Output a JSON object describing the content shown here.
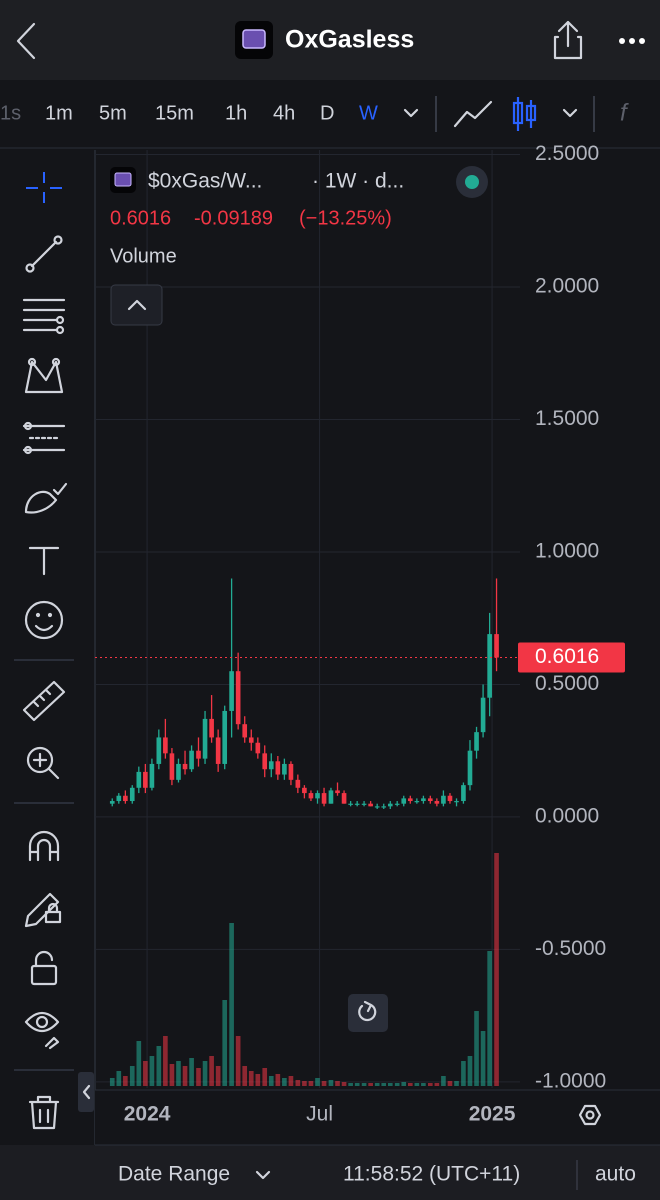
{
  "header": {
    "title": "OxGasless"
  },
  "timeframes": [
    "1s",
    "1m",
    "5m",
    "15m",
    "1h",
    "4h",
    "D",
    "W"
  ],
  "selected_timeframe": "W",
  "chart_data": {
    "type": "candlestick",
    "title": "$0xGas/W...",
    "subtitle": "· 1W · d...",
    "change": -0.09189,
    "change_label": "(−13.25%)",
    "volume_label": "Volume",
    "up_color": "#22ab94",
    "down_color": "#f23645",
    "x": [
      2023.899,
      2023.918,
      2023.937,
      2023.957,
      2023.976,
      2023.995,
      2024.014,
      2024.034,
      2024.053,
      2024.072,
      2024.091,
      2024.11,
      2024.129,
      2024.149,
      2024.168,
      2024.187,
      2024.206,
      2024.225,
      2024.245,
      2024.264,
      2024.283,
      2024.302,
      2024.321,
      2024.341,
      2024.36,
      2024.379,
      2024.398,
      2024.417,
      2024.437,
      2024.456,
      2024.475,
      2024.494,
      2024.513,
      2024.533,
      2024.552,
      2024.571,
      2024.59,
      2024.609,
      2024.629,
      2024.648,
      2024.667,
      2024.686,
      2024.705,
      2024.725,
      2024.744,
      2024.763,
      2024.782,
      2024.801,
      2024.821,
      2024.84,
      2024.859,
      2024.878,
      2024.897,
      2024.917,
      2024.936,
      2024.955,
      2024.974,
      2024.993,
      2025.013
    ],
    "open": [
      0.05,
      0.06,
      0.08,
      0.06,
      0.11,
      0.17,
      0.11,
      0.2,
      0.3,
      0.24,
      0.14,
      0.2,
      0.18,
      0.25,
      0.22,
      0.37,
      0.3,
      0.2,
      0.4,
      0.55,
      0.35,
      0.3,
      0.28,
      0.24,
      0.18,
      0.21,
      0.16,
      0.2,
      0.14,
      0.11,
      0.09,
      0.07,
      0.09,
      0.05,
      0.1,
      0.09,
      0.05,
      0.05,
      0.05,
      0.05,
      0.04,
      0.04,
      0.04,
      0.05,
      0.05,
      0.07,
      0.06,
      0.06,
      0.07,
      0.06,
      0.05,
      0.08,
      0.06,
      0.06,
      0.12,
      0.25,
      0.32,
      0.45,
      0.69
    ],
    "high": [
      0.07,
      0.09,
      0.1,
      0.12,
      0.19,
      0.2,
      0.22,
      0.33,
      0.37,
      0.26,
      0.22,
      0.25,
      0.27,
      0.3,
      0.4,
      0.46,
      0.33,
      0.42,
      0.9,
      0.62,
      0.38,
      0.33,
      0.3,
      0.27,
      0.24,
      0.23,
      0.22,
      0.21,
      0.16,
      0.12,
      0.1,
      0.1,
      0.11,
      0.11,
      0.13,
      0.1,
      0.06,
      0.06,
      0.06,
      0.06,
      0.05,
      0.05,
      0.06,
      0.06,
      0.08,
      0.08,
      0.07,
      0.08,
      0.08,
      0.07,
      0.1,
      0.09,
      0.07,
      0.13,
      0.29,
      0.34,
      0.5,
      0.77,
      0.9
    ],
    "low": [
      0.04,
      0.05,
      0.05,
      0.05,
      0.09,
      0.09,
      0.1,
      0.18,
      0.22,
      0.12,
      0.13,
      0.16,
      0.17,
      0.19,
      0.2,
      0.28,
      0.17,
      0.18,
      0.3,
      0.33,
      0.28,
      0.25,
      0.22,
      0.15,
      0.15,
      0.14,
      0.14,
      0.12,
      0.09,
      0.07,
      0.06,
      0.05,
      0.04,
      0.05,
      0.08,
      0.05,
      0.04,
      0.04,
      0.04,
      0.04,
      0.03,
      0.03,
      0.03,
      0.04,
      0.04,
      0.05,
      0.05,
      0.05,
      0.05,
      0.04,
      0.04,
      0.05,
      0.04,
      0.05,
      0.1,
      0.22,
      0.3,
      0.38,
      0.55
    ],
    "close": [
      0.06,
      0.08,
      0.06,
      0.11,
      0.17,
      0.11,
      0.2,
      0.3,
      0.24,
      0.14,
      0.2,
      0.18,
      0.25,
      0.22,
      0.37,
      0.3,
      0.2,
      0.4,
      0.55,
      0.35,
      0.3,
      0.28,
      0.24,
      0.18,
      0.21,
      0.16,
      0.2,
      0.14,
      0.11,
      0.09,
      0.07,
      0.09,
      0.05,
      0.1,
      0.09,
      0.05,
      0.05,
      0.05,
      0.05,
      0.04,
      0.04,
      0.04,
      0.05,
      0.05,
      0.07,
      0.06,
      0.06,
      0.07,
      0.06,
      0.05,
      0.08,
      0.06,
      0.06,
      0.12,
      0.25,
      0.32,
      0.45,
      0.69,
      0.6016
    ],
    "volume": [
      8,
      15,
      10,
      20,
      45,
      25,
      30,
      40,
      50,
      22,
      25,
      20,
      28,
      18,
      25,
      30,
      20,
      86,
      163,
      50,
      20,
      15,
      12,
      18,
      10,
      12,
      8,
      10,
      6,
      5,
      5,
      8,
      5,
      6,
      5,
      4,
      3,
      3,
      3,
      3,
      3,
      3,
      3,
      3,
      4,
      3,
      3,
      3,
      3,
      3,
      10,
      5,
      5,
      25,
      30,
      75,
      55,
      135,
      233
    ],
    "xlim": [
      2023.849,
      2025.081
    ],
    "xticks": [
      2024,
      {
        "value": 2024.5,
        "label": "Jul"
      },
      2025
    ],
    "ylim": [
      -1.023,
      2.517
    ],
    "yticks": [
      {
        "value": 2.5,
        "label": "2.5000"
      },
      {
        "value": 2.0,
        "label": "2.0000"
      },
      {
        "value": 1.5,
        "label": "1.5000"
      },
      {
        "value": 1.0,
        "label": "1.0000"
      },
      {
        "value": 0.5,
        "label": "0.5000"
      },
      {
        "value": 0.0,
        "label": "0.0000"
      },
      {
        "value": -0.5,
        "label": "-0.5000"
      },
      {
        "value": -1.0,
        "label": "-1.0000"
      }
    ],
    "grid": true
  },
  "footer": {
    "date_range": "Date Range",
    "time": "11:58:52 (UTC+11)",
    "scale": "auto"
  }
}
